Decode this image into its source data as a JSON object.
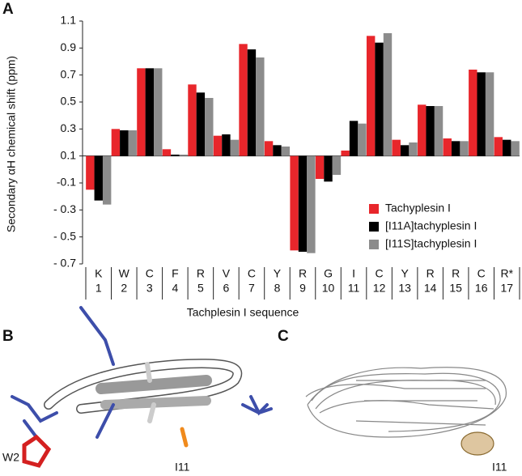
{
  "panels": {
    "a": "A",
    "b": "B",
    "c": "C"
  },
  "annotations": {
    "w2": "W2",
    "i11_b": "I11",
    "i11_c": "I11"
  },
  "chart_data": {
    "type": "bar",
    "ylabel": "Secondary αH chemical shift (ppm)",
    "xlabel": "Tachplesin I sequence",
    "categories": [
      "K",
      "W",
      "C",
      "F",
      "R",
      "V",
      "C",
      "Y",
      "R",
      "G",
      "I",
      "C",
      "Y",
      "R",
      "R",
      "C",
      "R*"
    ],
    "category_numbers": [
      "1",
      "2",
      "3",
      "4",
      "5",
      "6",
      "7",
      "8",
      "9",
      "10",
      "11",
      "12",
      "13",
      "14",
      "15",
      "16",
      "17"
    ],
    "baseline": 0.1,
    "ylim": [
      -0.7,
      1.1
    ],
    "yticks": [
      {
        "value": -0.7,
        "label": "- 0.7"
      },
      {
        "value": -0.5,
        "label": "- 0.5"
      },
      {
        "value": -0.3,
        "label": "- 0.3"
      },
      -0.1,
      0.1,
      0.3,
      0.5,
      0.7,
      0.9,
      1.1
    ],
    "series": [
      {
        "name": "Tachyplesin I",
        "color": "#e8262b",
        "values": [
          -0.15,
          0.3,
          0.75,
          0.15,
          0.63,
          0.25,
          0.93,
          0.21,
          -0.6,
          -0.07,
          0.14,
          0.99,
          0.22,
          0.48,
          0.23,
          0.74,
          0.24
        ]
      },
      {
        "name": "[I11A]tachyplesin I",
        "color": "#000000",
        "values": [
          -0.23,
          0.29,
          0.75,
          0.11,
          0.57,
          0.26,
          0.89,
          0.18,
          -0.61,
          -0.09,
          0.36,
          0.94,
          0.18,
          0.47,
          0.21,
          0.72,
          0.22
        ]
      },
      {
        "name": "[I11S]tachyplesin I",
        "color": "#8c8c8c",
        "values": [
          -0.26,
          0.29,
          0.75,
          0.11,
          0.53,
          0.22,
          0.83,
          0.17,
          -0.62,
          -0.04,
          0.34,
          1.01,
          0.2,
          0.47,
          0.21,
          0.72,
          0.21
        ]
      }
    ]
  }
}
